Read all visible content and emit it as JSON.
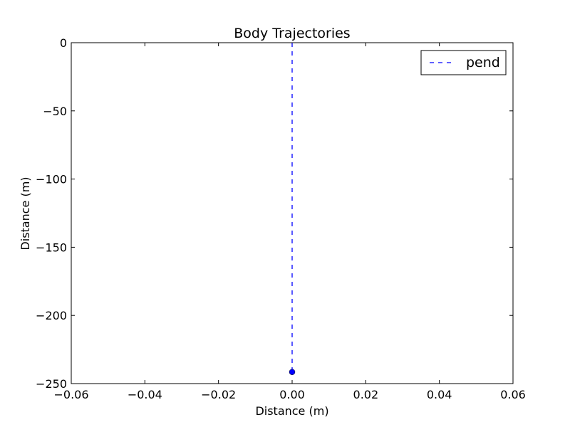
{
  "chart_data": {
    "type": "line",
    "title": "Body Trajectories",
    "xlabel": "Distance (m)",
    "ylabel": "Distance (m)",
    "xlim": [
      -0.06,
      0.06
    ],
    "ylim": [
      -250,
      0
    ],
    "x_ticks": [
      -0.06,
      -0.04,
      -0.02,
      0.0,
      0.02,
      0.04,
      0.06
    ],
    "x_tick_labels": [
      "−0.06",
      "−0.04",
      "−0.02",
      "0.00",
      "0.02",
      "0.04",
      "0.06"
    ],
    "y_ticks": [
      0,
      -50,
      -100,
      -150,
      -200,
      -250
    ],
    "y_tick_labels": [
      "0",
      "−50",
      "−100",
      "−150",
      "−200",
      "−250"
    ],
    "grid": false,
    "legend_position": "top-right",
    "series": [
      {
        "name": "pend",
        "color": "#0000ff",
        "line_style": "dashed",
        "x": [
          0.0,
          0.0
        ],
        "y": [
          0,
          -241.5
        ],
        "end_marker": {
          "x": 0.0,
          "y": -241.5,
          "shape": "circle"
        }
      }
    ]
  }
}
